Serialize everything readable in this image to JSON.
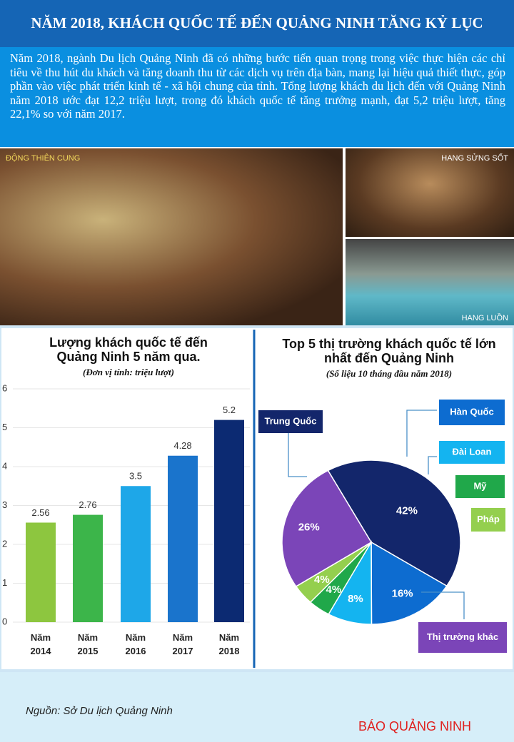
{
  "header": {
    "title": "NĂM 2018, KHÁCH QUỐC TẾ ĐẾN QUẢNG NINH TĂNG KỶ LỤC"
  },
  "intro": "Năm 2018, ngành Du lịch Quảng Ninh đã có những bước tiến quan trọng trong việc thực hiện các chỉ tiêu về thu hút du khách và tăng doanh thu từ các dịch vụ trên địa bàn, mang lại hiệu quả thiết thực, góp phần vào việc phát triển kinh tế - xã hội chung của tỉnh. Tổng lượng khách du lịch đến với Quảng Ninh năm 2018 ước đạt 12,2 triệu lượt, trong đó khách quốc tế tăng trưởng mạnh, đạt 5,2 triệu lượt, tăng 22,1% so với năm 2017.",
  "photos": [
    "ĐỘNG THIÊN CUNG",
    "HANG SỬNG SỐT",
    "HANG LUỒN"
  ],
  "chart_data": [
    {
      "type": "bar",
      "title": "Lượng khách quốc tế đến Quảng Ninh 5 năm qua.",
      "subtitle": "(Đơn vị tính: triệu lượt)",
      "categories": [
        "Năm 2014",
        "Năm 2015",
        "Năm 2016",
        "Năm 2017",
        "Năm 2018"
      ],
      "values": [
        2.56,
        2.76,
        3.5,
        4.28,
        5.2
      ],
      "colors": [
        "#8dc63f",
        "#3cb54a",
        "#1ea7e8",
        "#1a74cc",
        "#0c2a72"
      ],
      "ylim": [
        0,
        6
      ],
      "yticks": [
        0,
        1,
        2,
        3,
        4,
        5,
        6
      ],
      "grid": true
    },
    {
      "type": "pie",
      "title": "Top 5 thị trường khách quốc tế lớn nhất đến Quảng Ninh",
      "subtitle": "(Số liệu 10 tháng đầu năm 2018)",
      "categories": [
        "Trung Quốc",
        "Hàn Quốc",
        "Đài Loan",
        "Mỹ",
        "Pháp",
        "Thị trường khác"
      ],
      "values": [
        42,
        16,
        8,
        4,
        4,
        26
      ],
      "value_labels": [
        "42%",
        "16%",
        "8%",
        "4%",
        "4%",
        "26%"
      ],
      "colors": [
        "#13266b",
        "#0d6cd0",
        "#14b4f0",
        "#20a84a",
        "#94cf4e",
        "#7b45b8"
      ]
    }
  ],
  "footer": {
    "source": "Nguồn: Sở Du lịch Quảng Ninh",
    "brand": "BÁO QUẢNG NINH"
  }
}
